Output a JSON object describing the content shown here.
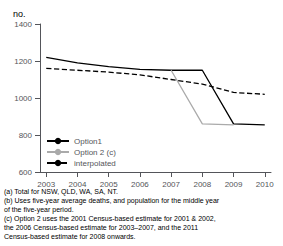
{
  "chart_data": {
    "type": "line",
    "title": "no.",
    "x": [
      2003,
      2004,
      2005,
      2006,
      2007,
      2008,
      2009,
      2010
    ],
    "series": [
      {
        "name": "Option1",
        "color": "#000000",
        "line_style": "solid",
        "values": [
          1220,
          1190,
          1170,
          1155,
          1150,
          1150,
          860,
          855
        ]
      },
      {
        "name": "Option 2 (c)",
        "color": "#aaaaaa",
        "line_style": "solid",
        "values": [
          null,
          null,
          null,
          null,
          1150,
          860,
          855,
          null
        ]
      },
      {
        "name": "interpolated",
        "color": "#000000",
        "line_style": "dashed",
        "values": [
          1160,
          1150,
          1140,
          1125,
          1100,
          1075,
          1030,
          1020
        ]
      }
    ],
    "xlim": [
      2002.8,
      2010.2
    ],
    "xticks": [
      2003,
      2004,
      2005,
      2006,
      2007,
      2008,
      2009,
      2010
    ],
    "ylim": [
      600,
      1400
    ],
    "yticks": [
      600,
      800,
      1000,
      1200,
      1400
    ],
    "grid": false,
    "legend": "lower left",
    "annotations": [
      "(a) Total for NSW, QLD, WA, SA, NT.",
      "(b) Uses five-year average deaths, and population for the middle year",
      "of the five-year period.",
      "(c) Option 2 uses the 2001 Census-based estimate for 2001 & 2002,",
      "the 2006 Census-based estimate for 2003–2007, and the 2011",
      "Census-based estimate for 2008 onwards."
    ]
  }
}
